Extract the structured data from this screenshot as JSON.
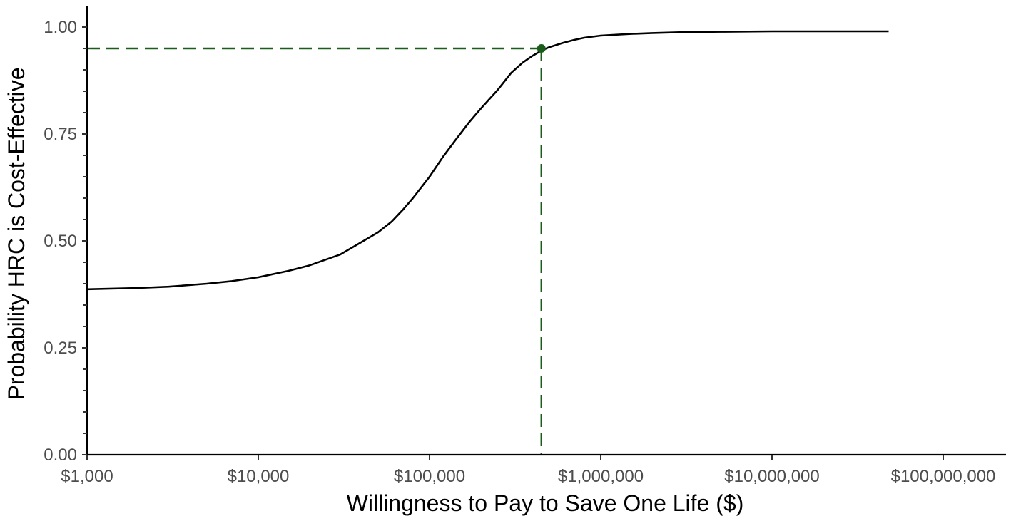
{
  "chart_data": {
    "type": "line",
    "title": "",
    "xlabel": "Willingness to Pay to Save One Life ($)",
    "ylabel": "Probability HRC is Cost-Effective",
    "x_scale": "log10",
    "xlim": [
      1000,
      100000000
    ],
    "ylim": [
      0,
      1.05
    ],
    "x_ticks": [
      1000,
      10000,
      100000,
      1000000,
      10000000,
      100000000
    ],
    "x_tick_labels": [
      "$1,000",
      "$10,000",
      "$100,000",
      "$1,000,000",
      "$10,000,000",
      "$100,000,000"
    ],
    "y_ticks": [
      0,
      0.25,
      0.5,
      0.75,
      1.0
    ],
    "y_tick_labels": [
      "0.00",
      "0.25",
      "0.50",
      "0.75",
      "1.00"
    ],
    "grid": false,
    "legend": "none",
    "series": [
      {
        "x": [
          1000,
          2000,
          3000,
          5000,
          7000,
          10000,
          15000,
          20000,
          30000,
          40000,
          50000,
          60000,
          70000,
          80000,
          100000,
          120000,
          140000,
          170000,
          200000,
          250000,
          300000,
          350000,
          400000,
          450000,
          500000,
          600000,
          700000,
          800000,
          1000000,
          1500000,
          2000000,
          3000000,
          5000000,
          10000000,
          20000000,
          48000000
        ],
        "y": [
          0.387,
          0.39,
          0.393,
          0.4,
          0.406,
          0.415,
          0.43,
          0.443,
          0.468,
          0.497,
          0.52,
          0.545,
          0.573,
          0.6,
          0.65,
          0.697,
          0.733,
          0.777,
          0.81,
          0.853,
          0.893,
          0.917,
          0.933,
          0.945,
          0.953,
          0.963,
          0.97,
          0.975,
          0.98,
          0.984,
          0.986,
          0.988,
          0.989,
          0.99,
          0.99,
          0.99
        ],
        "color": "#000000"
      }
    ],
    "annotations": [
      {
        "type": "threshold-point",
        "x": 450000,
        "y": 0.95,
        "color": "#1a5c1a"
      }
    ]
  }
}
